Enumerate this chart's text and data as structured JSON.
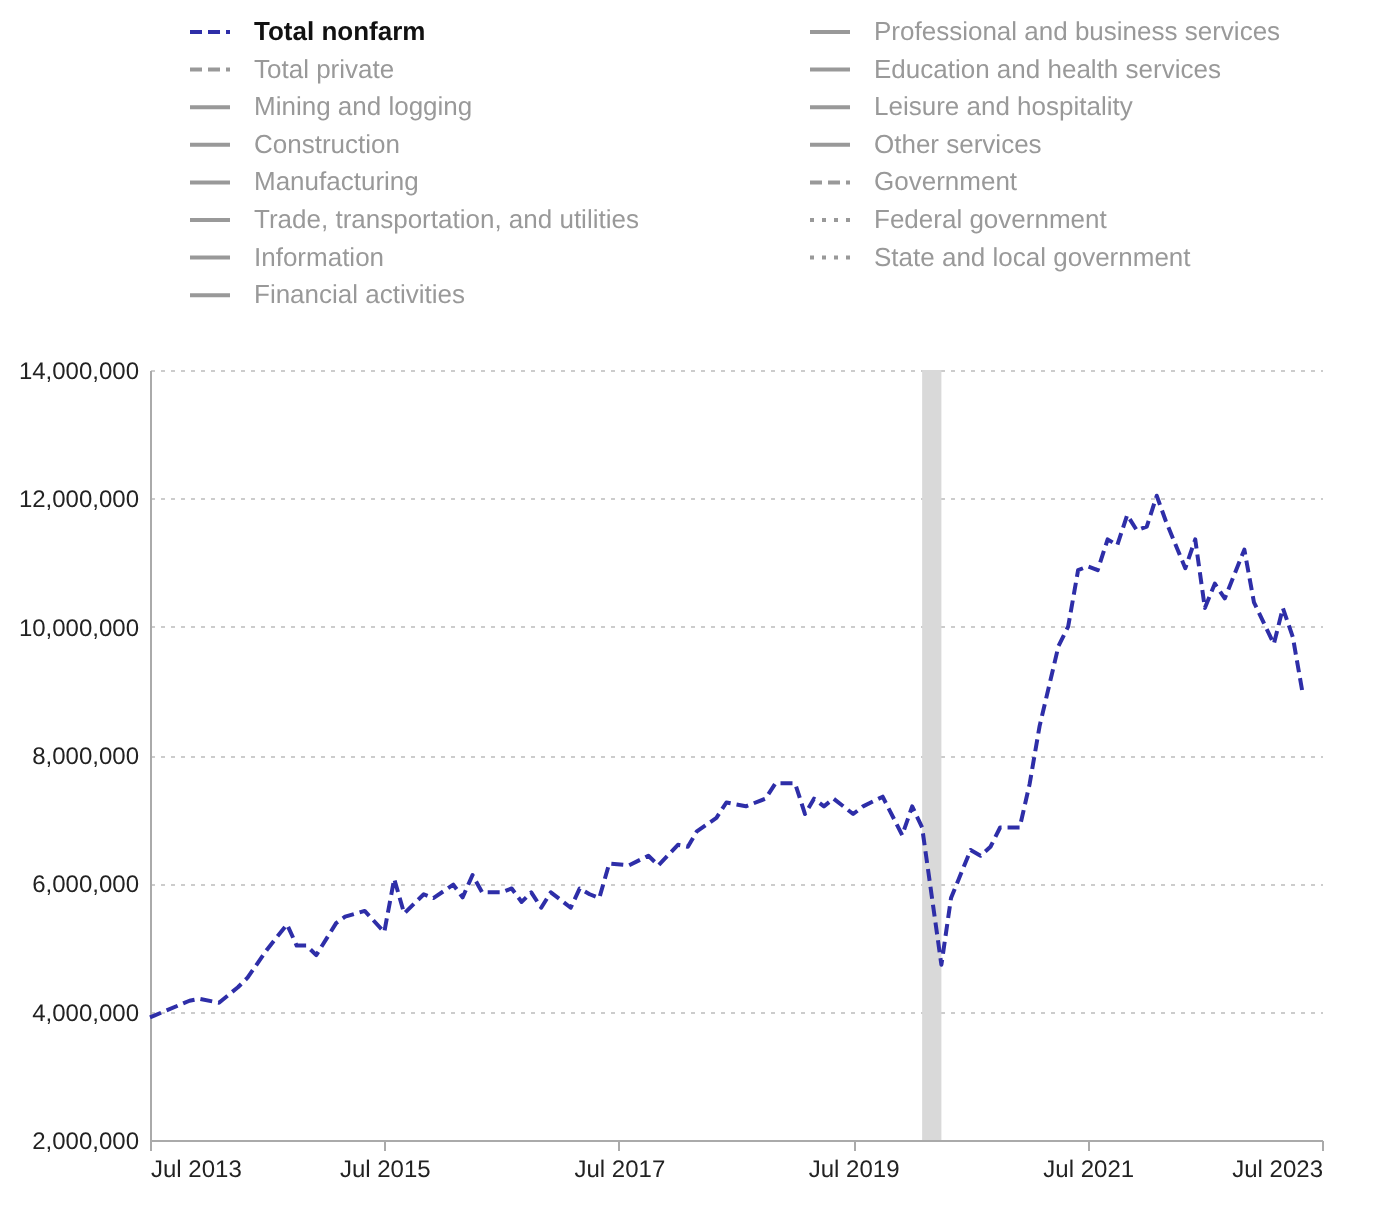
{
  "chart_data": {
    "type": "line",
    "x": [
      "2013-07",
      "2013-11",
      "2013-12",
      "2014-02",
      "2014-04",
      "2014-05",
      "2014-07",
      "2014-09",
      "2014-10",
      "2014-11",
      "2014-12",
      "2015-02",
      "2015-03",
      "2015-05",
      "2015-07",
      "2015-08",
      "2015-09",
      "2015-11",
      "2015-12",
      "2016-02",
      "2016-03",
      "2016-04",
      "2016-05",
      "2016-07",
      "2016-08",
      "2016-09",
      "2016-10",
      "2016-11",
      "2016-12",
      "2017-02",
      "2017-03",
      "2017-04",
      "2017-05",
      "2017-06",
      "2017-08",
      "2017-10",
      "2017-11",
      "2018-01",
      "2018-02",
      "2018-03",
      "2018-05",
      "2018-06",
      "2018-08",
      "2018-10",
      "2018-11",
      "2019-01",
      "2019-02",
      "2019-03",
      "2019-04",
      "2019-05",
      "2019-07",
      "2019-08",
      "2019-10",
      "2019-12",
      "2020-01",
      "2020-02",
      "2020-04",
      "2020-05",
      "2020-07",
      "2020-08",
      "2020-09",
      "2020-10",
      "2020-12",
      "2021-01",
      "2021-02",
      "2021-04",
      "2021-05",
      "2021-06",
      "2021-07",
      "2021-08",
      "2021-09",
      "2021-10",
      "2021-11",
      "2021-12",
      "2022-01",
      "2022-02",
      "2022-03",
      "2022-05",
      "2022-06",
      "2022-07",
      "2022-08",
      "2022-09",
      "2022-11",
      "2022-12",
      "2023-02",
      "2023-03",
      "2023-04",
      "2023-05"
    ],
    "series": [
      {
        "name": "Total nonfarm",
        "color": "#2e2ea8",
        "line_style": "dashed",
        "values": [
          3910000,
          4170000,
          4200000,
          4140000,
          4380000,
          4530000,
          4970000,
          5360000,
          5030000,
          5030000,
          4880000,
          5380000,
          5480000,
          5570000,
          5240000,
          6070000,
          5530000,
          5830000,
          5770000,
          5980000,
          5780000,
          6130000,
          5860000,
          5860000,
          5920000,
          5710000,
          5860000,
          5620000,
          5860000,
          5620000,
          5920000,
          5830000,
          5770000,
          6310000,
          6280000,
          6430000,
          6280000,
          6600000,
          6570000,
          6810000,
          7020000,
          7260000,
          7200000,
          7320000,
          7560000,
          7560000,
          7080000,
          7320000,
          7200000,
          7320000,
          7080000,
          7200000,
          7350000,
          6750000,
          7200000,
          6870000,
          4730000,
          5770000,
          6520000,
          6430000,
          6570000,
          6870000,
          6870000,
          7550000,
          8450000,
          9700000,
          10000000,
          10880000,
          10940000,
          10880000,
          11360000,
          11270000,
          11740000,
          11500000,
          11560000,
          12040000,
          11650000,
          10910000,
          11360000,
          10290000,
          10670000,
          10440000,
          11200000,
          10380000,
          9730000,
          10290000,
          9840000,
          8980000
        ]
      },
      {
        "name": "Total private",
        "color": "#999999",
        "line_style": "dashed",
        "values": [
          null,
          null,
          null,
          null,
          null,
          null,
          null,
          null,
          null,
          null,
          null,
          null,
          null,
          null,
          null,
          null,
          null,
          null,
          null,
          null,
          null,
          null,
          null,
          null,
          null,
          null,
          null,
          null,
          null,
          null,
          null,
          null,
          null,
          null,
          null,
          null,
          null,
          null,
          null,
          null,
          null,
          null,
          null,
          null,
          null,
          null,
          null,
          null,
          null,
          null,
          null,
          null,
          null,
          null,
          null,
          null,
          null,
          null,
          null,
          null,
          null,
          null,
          null,
          null,
          null,
          null,
          null,
          null,
          null,
          null,
          null,
          null,
          null,
          null,
          null,
          null,
          null,
          null,
          null,
          null,
          null,
          null,
          null,
          null,
          null,
          null,
          null,
          null
        ]
      },
      {
        "name": "Mining and logging",
        "color": "#999999",
        "line_style": "solid",
        "values": [
          null,
          null,
          null,
          null,
          null,
          null,
          null,
          null,
          null,
          null,
          null,
          null,
          null,
          null,
          null,
          null,
          null,
          null,
          null,
          null,
          null,
          null,
          null,
          null,
          null,
          null,
          null,
          null,
          null,
          null,
          null,
          null,
          null,
          null,
          null,
          null,
          null,
          null,
          null,
          null,
          null,
          null,
          null,
          null,
          null,
          null,
          null,
          null,
          null,
          null,
          null,
          null,
          null,
          null,
          null,
          null,
          null,
          null,
          null,
          null,
          null,
          null,
          null,
          null,
          null,
          null,
          null,
          null,
          null,
          null,
          null,
          null,
          null,
          null,
          null,
          null,
          null,
          null,
          null,
          null,
          null,
          null,
          null,
          null,
          null,
          null,
          null,
          null
        ]
      },
      {
        "name": "Construction",
        "color": "#999999",
        "line_style": "solid",
        "values": [
          null,
          null,
          null,
          null,
          null,
          null,
          null,
          null,
          null,
          null,
          null,
          null,
          null,
          null,
          null,
          null,
          null,
          null,
          null,
          null,
          null,
          null,
          null,
          null,
          null,
          null,
          null,
          null,
          null,
          null,
          null,
          null,
          null,
          null,
          null,
          null,
          null,
          null,
          null,
          null,
          null,
          null,
          null,
          null,
          null,
          null,
          null,
          null,
          null,
          null,
          null,
          null,
          null,
          null,
          null,
          null,
          null,
          null,
          null,
          null,
          null,
          null,
          null,
          null,
          null,
          null,
          null,
          null,
          null,
          null,
          null,
          null,
          null,
          null,
          null,
          null,
          null,
          null,
          null,
          null,
          null,
          null,
          null,
          null,
          null,
          null,
          null,
          null
        ]
      },
      {
        "name": "Manufacturing",
        "color": "#999999",
        "line_style": "solid",
        "values": [
          null,
          null,
          null,
          null,
          null,
          null,
          null,
          null,
          null,
          null,
          null,
          null,
          null,
          null,
          null,
          null,
          null,
          null,
          null,
          null,
          null,
          null,
          null,
          null,
          null,
          null,
          null,
          null,
          null,
          null,
          null,
          null,
          null,
          null,
          null,
          null,
          null,
          null,
          null,
          null,
          null,
          null,
          null,
          null,
          null,
          null,
          null,
          null,
          null,
          null,
          null,
          null,
          null,
          null,
          null,
          null,
          null,
          null,
          null,
          null,
          null,
          null,
          null,
          null,
          null,
          null,
          null,
          null,
          null,
          null,
          null,
          null,
          null,
          null,
          null,
          null,
          null,
          null,
          null,
          null,
          null,
          null,
          null,
          null,
          null,
          null,
          null,
          null
        ]
      },
      {
        "name": "Trade, transportation, and utilities",
        "color": "#999999",
        "line_style": "solid",
        "values": [
          null,
          null,
          null,
          null,
          null,
          null,
          null,
          null,
          null,
          null,
          null,
          null,
          null,
          null,
          null,
          null,
          null,
          null,
          null,
          null,
          null,
          null,
          null,
          null,
          null,
          null,
          null,
          null,
          null,
          null,
          null,
          null,
          null,
          null,
          null,
          null,
          null,
          null,
          null,
          null,
          null,
          null,
          null,
          null,
          null,
          null,
          null,
          null,
          null,
          null,
          null,
          null,
          null,
          null,
          null,
          null,
          null,
          null,
          null,
          null,
          null,
          null,
          null,
          null,
          null,
          null,
          null,
          null,
          null,
          null,
          null,
          null,
          null,
          null,
          null,
          null,
          null,
          null,
          null,
          null,
          null,
          null,
          null,
          null,
          null,
          null,
          null,
          null
        ]
      },
      {
        "name": "Information",
        "color": "#999999",
        "line_style": "solid",
        "values": [
          null,
          null,
          null,
          null,
          null,
          null,
          null,
          null,
          null,
          null,
          null,
          null,
          null,
          null,
          null,
          null,
          null,
          null,
          null,
          null,
          null,
          null,
          null,
          null,
          null,
          null,
          null,
          null,
          null,
          null,
          null,
          null,
          null,
          null,
          null,
          null,
          null,
          null,
          null,
          null,
          null,
          null,
          null,
          null,
          null,
          null,
          null,
          null,
          null,
          null,
          null,
          null,
          null,
          null,
          null,
          null,
          null,
          null,
          null,
          null,
          null,
          null,
          null,
          null,
          null,
          null,
          null,
          null,
          null,
          null,
          null,
          null,
          null,
          null,
          null,
          null,
          null,
          null,
          null,
          null,
          null,
          null,
          null,
          null,
          null,
          null,
          null,
          null
        ]
      },
      {
        "name": "Financial activities",
        "color": "#999999",
        "line_style": "solid",
        "values": [
          null,
          null,
          null,
          null,
          null,
          null,
          null,
          null,
          null,
          null,
          null,
          null,
          null,
          null,
          null,
          null,
          null,
          null,
          null,
          null,
          null,
          null,
          null,
          null,
          null,
          null,
          null,
          null,
          null,
          null,
          null,
          null,
          null,
          null,
          null,
          null,
          null,
          null,
          null,
          null,
          null,
          null,
          null,
          null,
          null,
          null,
          null,
          null,
          null,
          null,
          null,
          null,
          null,
          null,
          null,
          null,
          null,
          null,
          null,
          null,
          null,
          null,
          null,
          null,
          null,
          null,
          null,
          null,
          null,
          null,
          null,
          null,
          null,
          null,
          null,
          null,
          null,
          null,
          null,
          null,
          null,
          null,
          null,
          null,
          null,
          null,
          null,
          null
        ]
      },
      {
        "name": "Professional and business services",
        "color": "#999999",
        "line_style": "solid",
        "values": [
          null,
          null,
          null,
          null,
          null,
          null,
          null,
          null,
          null,
          null,
          null,
          null,
          null,
          null,
          null,
          null,
          null,
          null,
          null,
          null,
          null,
          null,
          null,
          null,
          null,
          null,
          null,
          null,
          null,
          null,
          null,
          null,
          null,
          null,
          null,
          null,
          null,
          null,
          null,
          null,
          null,
          null,
          null,
          null,
          null,
          null,
          null,
          null,
          null,
          null,
          null,
          null,
          null,
          null,
          null,
          null,
          null,
          null,
          null,
          null,
          null,
          null,
          null,
          null,
          null,
          null,
          null,
          null,
          null,
          null,
          null,
          null,
          null,
          null,
          null,
          null,
          null,
          null,
          null,
          null,
          null,
          null,
          null,
          null,
          null,
          null,
          null,
          null
        ]
      },
      {
        "name": "Education and health services",
        "color": "#999999",
        "line_style": "solid",
        "values": [
          null,
          null,
          null,
          null,
          null,
          null,
          null,
          null,
          null,
          null,
          null,
          null,
          null,
          null,
          null,
          null,
          null,
          null,
          null,
          null,
          null,
          null,
          null,
          null,
          null,
          null,
          null,
          null,
          null,
          null,
          null,
          null,
          null,
          null,
          null,
          null,
          null,
          null,
          null,
          null,
          null,
          null,
          null,
          null,
          null,
          null,
          null,
          null,
          null,
          null,
          null,
          null,
          null,
          null,
          null,
          null,
          null,
          null,
          null,
          null,
          null,
          null,
          null,
          null,
          null,
          null,
          null,
          null,
          null,
          null,
          null,
          null,
          null,
          null,
          null,
          null,
          null,
          null,
          null,
          null,
          null,
          null,
          null,
          null,
          null,
          null,
          null,
          null
        ]
      },
      {
        "name": "Leisure and hospitality",
        "color": "#999999",
        "line_style": "solid",
        "values": [
          null,
          null,
          null,
          null,
          null,
          null,
          null,
          null,
          null,
          null,
          null,
          null,
          null,
          null,
          null,
          null,
          null,
          null,
          null,
          null,
          null,
          null,
          null,
          null,
          null,
          null,
          null,
          null,
          null,
          null,
          null,
          null,
          null,
          null,
          null,
          null,
          null,
          null,
          null,
          null,
          null,
          null,
          null,
          null,
          null,
          null,
          null,
          null,
          null,
          null,
          null,
          null,
          null,
          null,
          null,
          null,
          null,
          null,
          null,
          null,
          null,
          null,
          null,
          null,
          null,
          null,
          null,
          null,
          null,
          null,
          null,
          null,
          null,
          null,
          null,
          null,
          null,
          null,
          null,
          null,
          null,
          null,
          null,
          null,
          null,
          null,
          null,
          null
        ]
      },
      {
        "name": "Other services",
        "color": "#999999",
        "line_style": "solid",
        "values": [
          null,
          null,
          null,
          null,
          null,
          null,
          null,
          null,
          null,
          null,
          null,
          null,
          null,
          null,
          null,
          null,
          null,
          null,
          null,
          null,
          null,
          null,
          null,
          null,
          null,
          null,
          null,
          null,
          null,
          null,
          null,
          null,
          null,
          null,
          null,
          null,
          null,
          null,
          null,
          null,
          null,
          null,
          null,
          null,
          null,
          null,
          null,
          null,
          null,
          null,
          null,
          null,
          null,
          null,
          null,
          null,
          null,
          null,
          null,
          null,
          null,
          null,
          null,
          null,
          null,
          null,
          null,
          null,
          null,
          null,
          null,
          null,
          null,
          null,
          null,
          null,
          null,
          null,
          null,
          null,
          null,
          null,
          null,
          null,
          null,
          null,
          null,
          null
        ]
      },
      {
        "name": "Government",
        "color": "#999999",
        "line_style": "dashed",
        "values": [
          null,
          null,
          null,
          null,
          null,
          null,
          null,
          null,
          null,
          null,
          null,
          null,
          null,
          null,
          null,
          null,
          null,
          null,
          null,
          null,
          null,
          null,
          null,
          null,
          null,
          null,
          null,
          null,
          null,
          null,
          null,
          null,
          null,
          null,
          null,
          null,
          null,
          null,
          null,
          null,
          null,
          null,
          null,
          null,
          null,
          null,
          null,
          null,
          null,
          null,
          null,
          null,
          null,
          null,
          null,
          null,
          null,
          null,
          null,
          null,
          null,
          null,
          null,
          null,
          null,
          null,
          null,
          null,
          null,
          null,
          null,
          null,
          null,
          null,
          null,
          null,
          null,
          null,
          null,
          null,
          null,
          null,
          null,
          null,
          null,
          null,
          null,
          null
        ]
      },
      {
        "name": "Federal government",
        "color": "#999999",
        "line_style": "dotted",
        "values": [
          null,
          null,
          null,
          null,
          null,
          null,
          null,
          null,
          null,
          null,
          null,
          null,
          null,
          null,
          null,
          null,
          null,
          null,
          null,
          null,
          null,
          null,
          null,
          null,
          null,
          null,
          null,
          null,
          null,
          null,
          null,
          null,
          null,
          null,
          null,
          null,
          null,
          null,
          null,
          null,
          null,
          null,
          null,
          null,
          null,
          null,
          null,
          null,
          null,
          null,
          null,
          null,
          null,
          null,
          null,
          null,
          null,
          null,
          null,
          null,
          null,
          null,
          null,
          null,
          null,
          null,
          null,
          null,
          null,
          null,
          null,
          null,
          null,
          null,
          null,
          null,
          null,
          null,
          null,
          null,
          null,
          null,
          null,
          null,
          null,
          null,
          null,
          null
        ]
      },
      {
        "name": "State and local government",
        "color": "#999999",
        "line_style": "dotted",
        "values": [
          null,
          null,
          null,
          null,
          null,
          null,
          null,
          null,
          null,
          null,
          null,
          null,
          null,
          null,
          null,
          null,
          null,
          null,
          null,
          null,
          null,
          null,
          null,
          null,
          null,
          null,
          null,
          null,
          null,
          null,
          null,
          null,
          null,
          null,
          null,
          null,
          null,
          null,
          null,
          null,
          null,
          null,
          null,
          null,
          null,
          null,
          null,
          null,
          null,
          null,
          null,
          null,
          null,
          null,
          null,
          null,
          null,
          null,
          null,
          null,
          null,
          null,
          null,
          null,
          null,
          null,
          null,
          null,
          null,
          null,
          null,
          null,
          null,
          null,
          null,
          null,
          null,
          null,
          null,
          null,
          null,
          null,
          null,
          null,
          null,
          null,
          null,
          null
        ]
      }
    ],
    "xlim": [
      "2013-07",
      "2023-07"
    ],
    "xticks": [
      {
        "value": "2013-07",
        "label": "Jul 2013"
      },
      {
        "value": "2015-07",
        "label": "Jul 2015"
      },
      {
        "value": "2017-07",
        "label": "Jul 2017"
      },
      {
        "value": "2019-07",
        "label": "Jul 2019"
      },
      {
        "value": "2021-07",
        "label": "Jul 2021"
      },
      {
        "value": "2023-07",
        "label": "Jul 2023"
      }
    ],
    "ylim": [
      2000000,
      14000000
    ],
    "yticks": [
      {
        "value": 2000000,
        "label": "2,000,000"
      },
      {
        "value": 4000000,
        "label": "4,000,000"
      },
      {
        "value": 6000000,
        "label": "6,000,000"
      },
      {
        "value": 8000000,
        "label": "8,000,000"
      },
      {
        "value": 10000000,
        "label": "10,000,000"
      },
      {
        "value": 12000000,
        "label": "12,000,000"
      },
      {
        "value": 14000000,
        "label": "14,000,000"
      }
    ],
    "bands": [
      {
        "axis": "x",
        "from": "2020-02",
        "to": "2020-04",
        "color": "#d9d9d9"
      }
    ],
    "grid": "y",
    "legend": "top"
  }
}
